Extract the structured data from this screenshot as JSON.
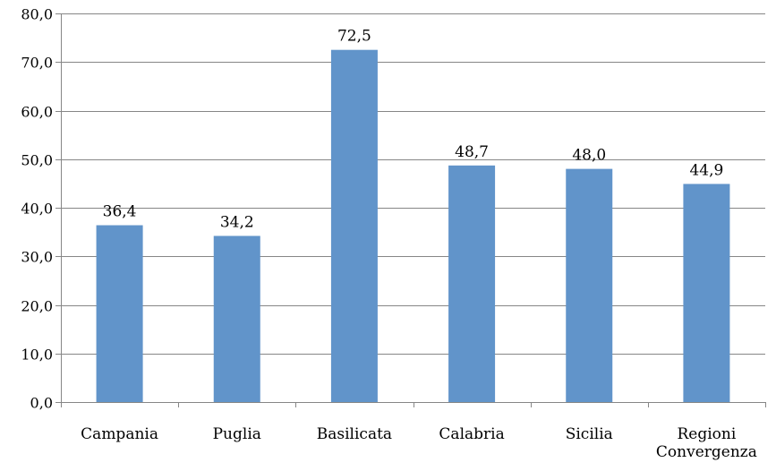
{
  "chart_data": {
    "type": "bar",
    "title": "",
    "xlabel": "",
    "ylabel": "",
    "categories": [
      "Campania",
      "Puglia",
      "Basilicata",
      "Calabria",
      "Sicilia",
      "Regioni Convergenza"
    ],
    "category_lines": [
      [
        "Campania"
      ],
      [
        "Puglia"
      ],
      [
        "Basilicata"
      ],
      [
        "Calabria"
      ],
      [
        "Sicilia"
      ],
      [
        "Regioni",
        "Convergenza"
      ]
    ],
    "values": [
      36.4,
      34.2,
      72.5,
      48.7,
      48.0,
      44.9
    ],
    "value_labels": [
      "36,4",
      "34,2",
      "72,5",
      "48,7",
      "48,0",
      "44,9"
    ],
    "ylim": [
      0,
      80
    ],
    "yticks": [
      0,
      10,
      20,
      30,
      40,
      50,
      60,
      70,
      80
    ],
    "ytick_labels": [
      "0,0",
      "10,0",
      "20,0",
      "30,0",
      "40,0",
      "50,0",
      "60,0",
      "70,0",
      "80,0"
    ],
    "grid": true,
    "legend": "none",
    "colors": {
      "bar": "#6194CA",
      "grid": "#868686",
      "axis": "#868686",
      "text": "#000000"
    }
  }
}
